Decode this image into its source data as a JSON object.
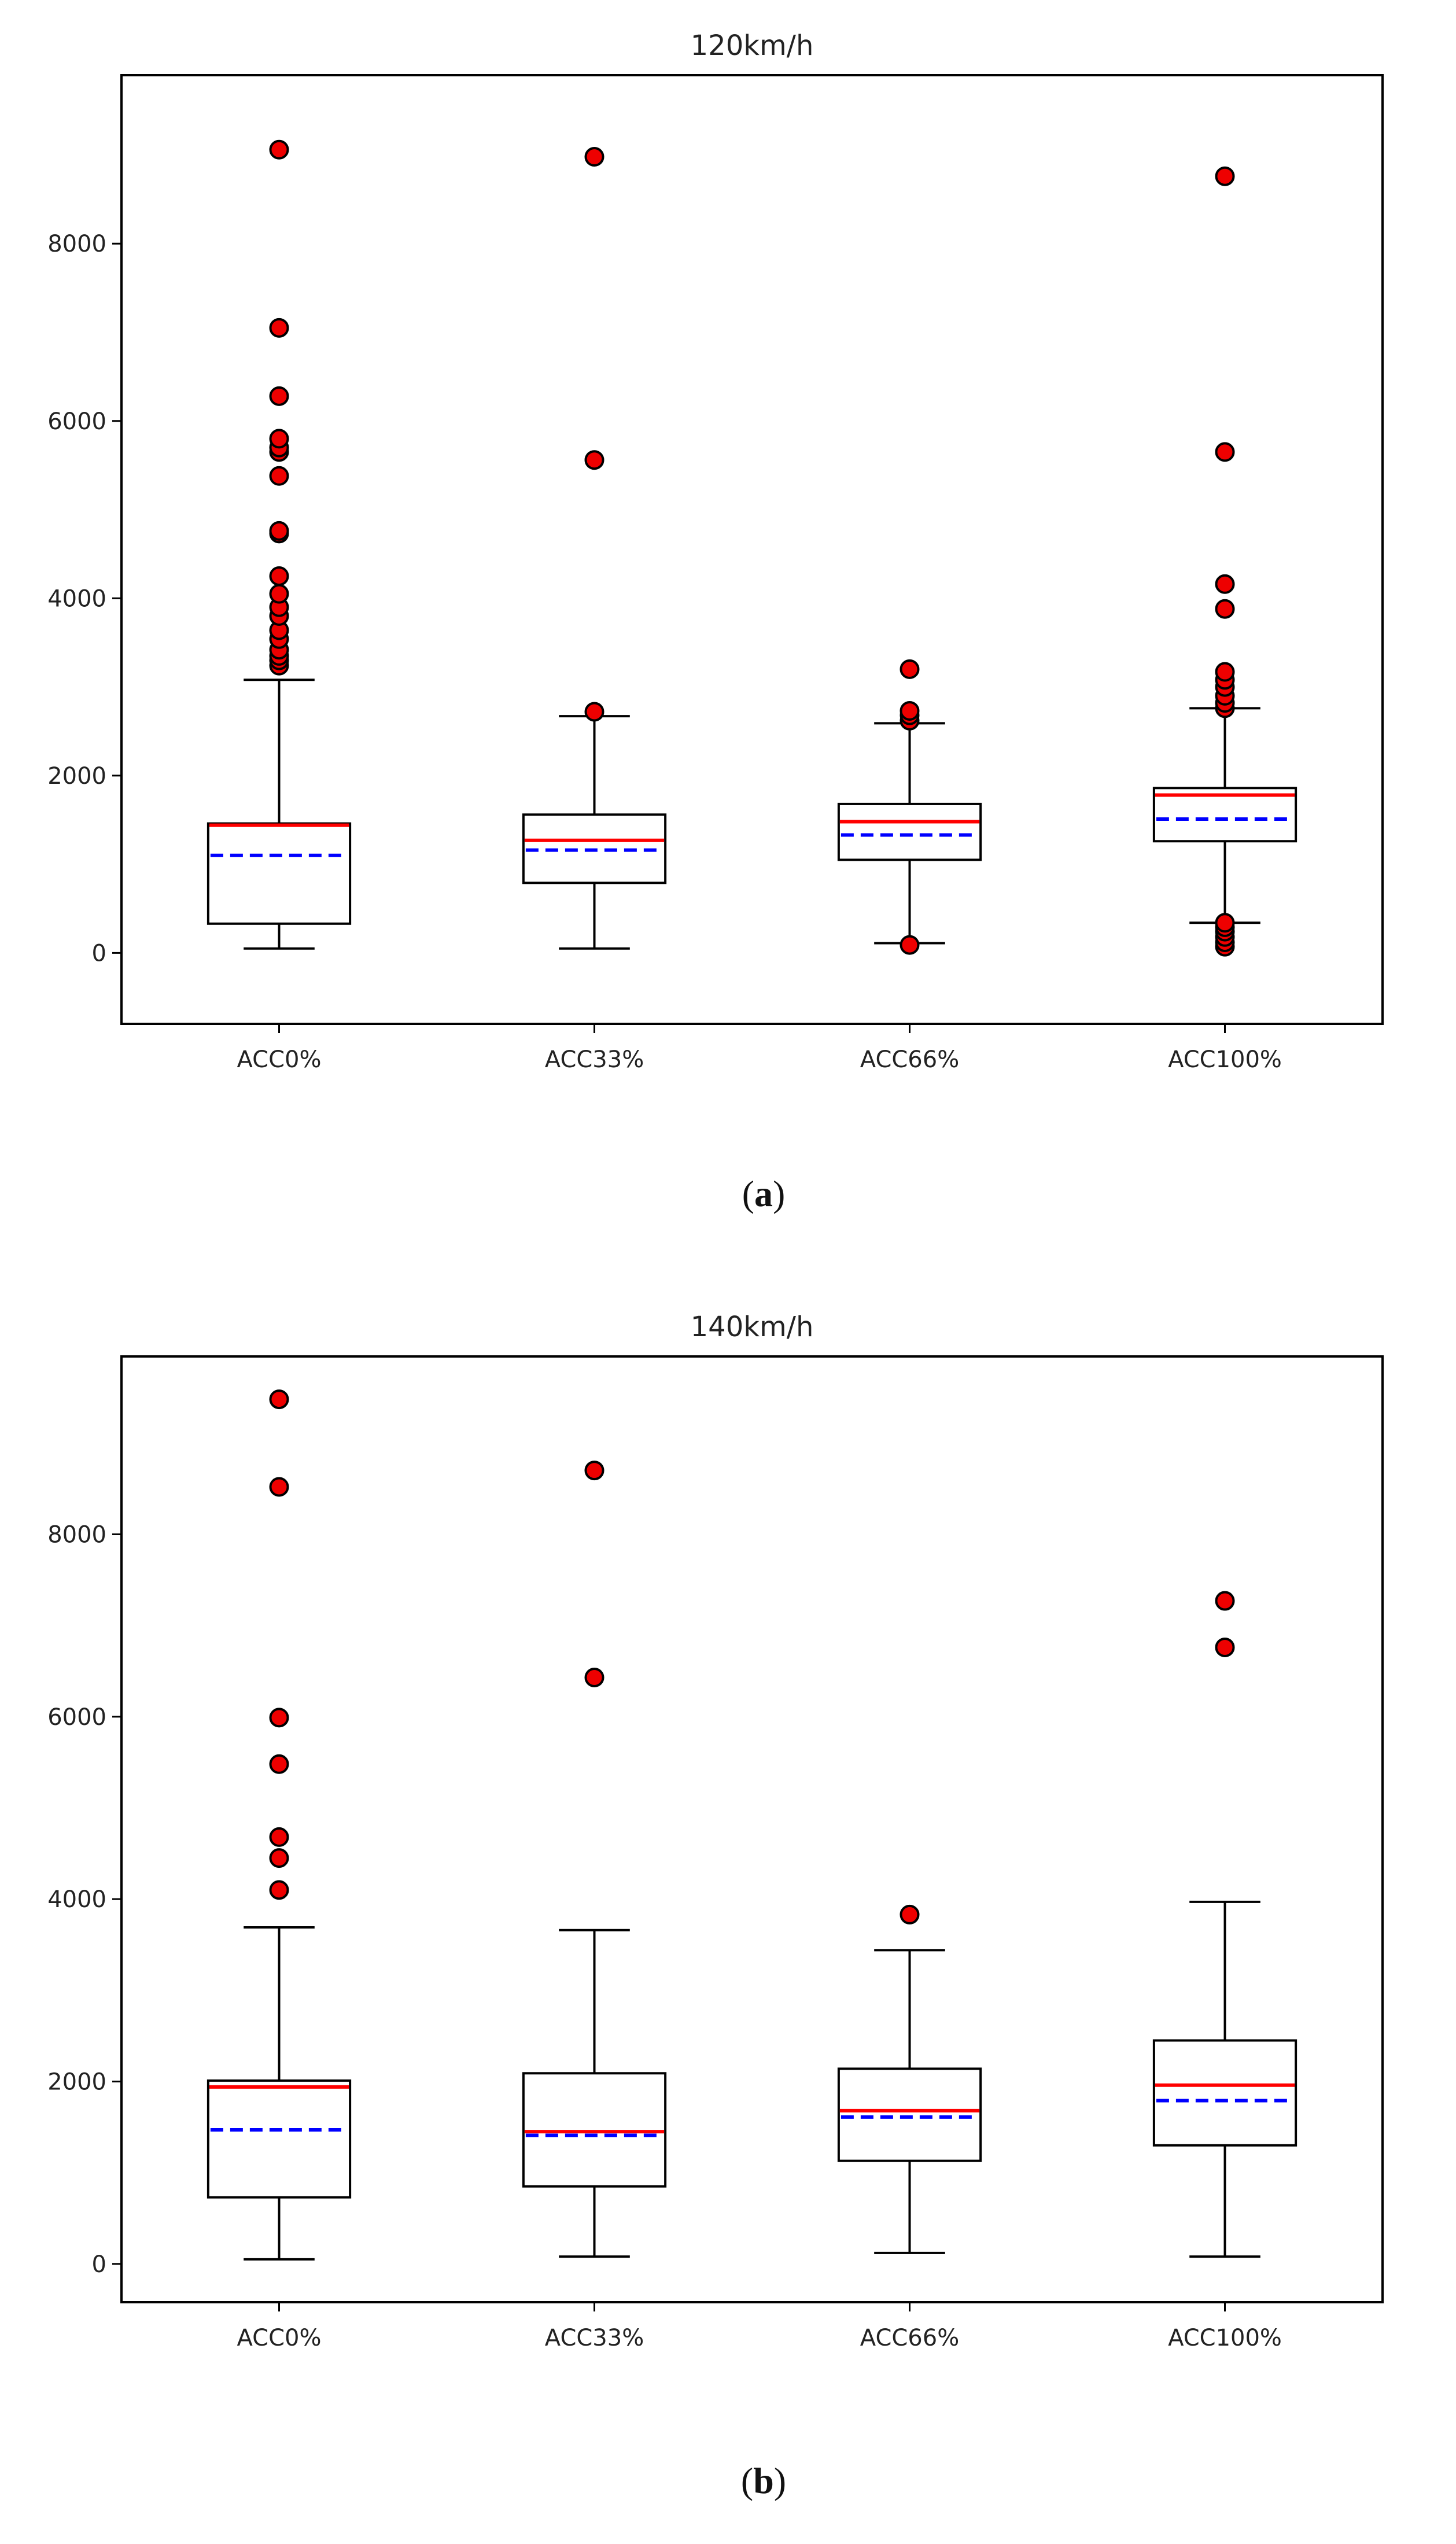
{
  "chart_data": [
    {
      "type": "box",
      "title": "120km/h",
      "caption_letter": "a",
      "xlabel": "",
      "ylabel": "",
      "ylim": [
        -800,
        9900
      ],
      "yticks": [
        0,
        2000,
        4000,
        6000,
        8000
      ],
      "categories": [
        "ACC0%",
        "ACC33%",
        "ACC66%",
        "ACC100%"
      ],
      "legend": {
        "median": "red solid line",
        "mean": "blue dashed line",
        "outliers": "red filled circles"
      },
      "boxes": [
        {
          "label": "ACC0%",
          "whisker_low": 50,
          "q1": 330,
          "median": 1440,
          "mean": 1100,
          "q3": 1460,
          "whisker_high": 3080,
          "outliers": [
            3240,
            3300,
            3350,
            3420,
            3540,
            3640,
            3800,
            3900,
            4050,
            4250,
            4730,
            4760,
            5380,
            5650,
            5700,
            5800,
            6280,
            7050,
            9060
          ]
        },
        {
          "label": "ACC33%",
          "whisker_low": 50,
          "q1": 790,
          "median": 1270,
          "mean": 1160,
          "q3": 1560,
          "whisker_high": 2670,
          "outliers": [
            2720,
            5560,
            8980
          ]
        },
        {
          "label": "ACC66%",
          "whisker_low": 110,
          "q1": 1050,
          "median": 1480,
          "mean": 1330,
          "q3": 1680,
          "whisker_high": 2590,
          "outliers": [
            90,
            2620,
            2680,
            2730,
            3200
          ]
        },
        {
          "label": "ACC100%",
          "whisker_low": 340,
          "q1": 1260,
          "median": 1780,
          "mean": 1510,
          "q3": 1860,
          "whisker_high": 2760,
          "outliers": [
            70,
            120,
            180,
            240,
            290,
            340,
            2760,
            2820,
            2900,
            3000,
            3080,
            3170,
            3880,
            4160,
            5650,
            8760
          ]
        }
      ]
    },
    {
      "type": "box",
      "title": "140km/h",
      "caption_letter": "b",
      "xlabel": "",
      "ylabel": "",
      "ylim": [
        -420,
        9950
      ],
      "yticks": [
        0,
        2000,
        4000,
        6000,
        8000
      ],
      "categories": [
        "ACC0%",
        "ACC33%",
        "ACC66%",
        "ACC100%"
      ],
      "legend": {
        "median": "red solid line",
        "mean": "blue dashed line",
        "outliers": "red filled circles"
      },
      "boxes": [
        {
          "label": "ACC0%",
          "whisker_low": 50,
          "q1": 730,
          "median": 1940,
          "mean": 1470,
          "q3": 2010,
          "whisker_high": 3690,
          "outliers": [
            4100,
            4450,
            4680,
            5480,
            5990,
            8520,
            9480
          ]
        },
        {
          "label": "ACC33%",
          "whisker_low": 80,
          "q1": 850,
          "median": 1450,
          "mean": 1410,
          "q3": 2090,
          "whisker_high": 3660,
          "outliers": [
            6430,
            8700
          ]
        },
        {
          "label": "ACC66%",
          "whisker_low": 120,
          "q1": 1130,
          "median": 1680,
          "mean": 1610,
          "q3": 2140,
          "whisker_high": 3440,
          "outliers": [
            3830
          ]
        },
        {
          "label": "ACC100%",
          "whisker_low": 80,
          "q1": 1300,
          "median": 1960,
          "mean": 1790,
          "q3": 2450,
          "whisker_high": 3970,
          "outliers": [
            6760,
            7270
          ]
        }
      ]
    }
  ],
  "colors": {
    "median": "#ff0000",
    "mean": "#0000ff",
    "outlier": "#ee0000",
    "axis": "#000000"
  }
}
